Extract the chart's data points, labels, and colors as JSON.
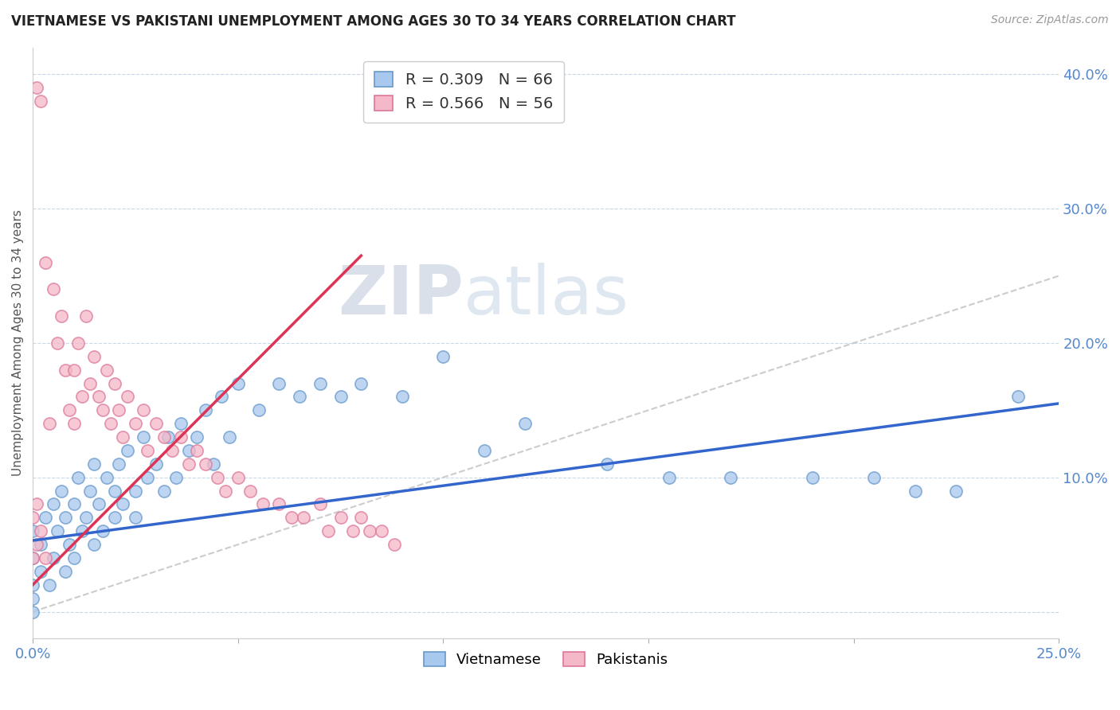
{
  "title": "VIETNAMESE VS PAKISTANI UNEMPLOYMENT AMONG AGES 30 TO 34 YEARS CORRELATION CHART",
  "source": "Source: ZipAtlas.com",
  "ylabel": "Unemployment Among Ages 30 to 34 years",
  "xlim": [
    0.0,
    0.25
  ],
  "ylim": [
    -0.02,
    0.42
  ],
  "xticks": [
    0.0,
    0.05,
    0.1,
    0.15,
    0.2,
    0.25
  ],
  "yticks": [
    0.0,
    0.1,
    0.2,
    0.3,
    0.4
  ],
  "xticklabels": [
    "0.0%",
    "",
    "",
    "",
    "",
    "25.0%"
  ],
  "yticklabels": [
    "",
    "10.0%",
    "20.0%",
    "30.0%",
    "40.0%"
  ],
  "background_color": "#ffffff",
  "R_vietnamese": 0.309,
  "N_vietnamese": 66,
  "R_pakistani": 0.566,
  "N_pakistani": 56,
  "vietnamese_color": "#a8c8ee",
  "pakistani_color": "#f4b8c8",
  "vietnamese_edge_color": "#6699cc",
  "pakistani_edge_color": "#dd7799",
  "vietnamese_line_color": "#3366cc",
  "pakistani_line_color": "#dd3355",
  "grid_color": "#c8d8e8",
  "watermark_zip_color": "#c8d8e8",
  "watermark_atlas_color": "#b0c4de",
  "viet_x": [
    0.0,
    0.0,
    0.0,
    0.0,
    0.0,
    0.002,
    0.002,
    0.003,
    0.004,
    0.005,
    0.005,
    0.006,
    0.007,
    0.008,
    0.008,
    0.009,
    0.01,
    0.01,
    0.011,
    0.012,
    0.013,
    0.014,
    0.015,
    0.015,
    0.016,
    0.017,
    0.018,
    0.02,
    0.02,
    0.021,
    0.022,
    0.023,
    0.025,
    0.025,
    0.027,
    0.028,
    0.03,
    0.032,
    0.033,
    0.035,
    0.036,
    0.038,
    0.04,
    0.042,
    0.044,
    0.046,
    0.048,
    0.05,
    0.055,
    0.06,
    0.065,
    0.07,
    0.075,
    0.08,
    0.09,
    0.1,
    0.11,
    0.12,
    0.14,
    0.155,
    0.17,
    0.19,
    0.205,
    0.215,
    0.225,
    0.24
  ],
  "viet_y": [
    0.06,
    0.04,
    0.02,
    0.01,
    0.0,
    0.05,
    0.03,
    0.07,
    0.02,
    0.08,
    0.04,
    0.06,
    0.09,
    0.03,
    0.07,
    0.05,
    0.08,
    0.04,
    0.1,
    0.06,
    0.07,
    0.09,
    0.05,
    0.11,
    0.08,
    0.06,
    0.1,
    0.09,
    0.07,
    0.11,
    0.08,
    0.12,
    0.09,
    0.07,
    0.13,
    0.1,
    0.11,
    0.09,
    0.13,
    0.1,
    0.14,
    0.12,
    0.13,
    0.15,
    0.11,
    0.16,
    0.13,
    0.17,
    0.15,
    0.17,
    0.16,
    0.17,
    0.16,
    0.17,
    0.16,
    0.19,
    0.12,
    0.14,
    0.11,
    0.1,
    0.1,
    0.1,
    0.1,
    0.09,
    0.09,
    0.16
  ],
  "pak_x": [
    0.001,
    0.002,
    0.003,
    0.004,
    0.005,
    0.006,
    0.007,
    0.008,
    0.009,
    0.01,
    0.01,
    0.011,
    0.012,
    0.013,
    0.014,
    0.015,
    0.016,
    0.017,
    0.018,
    0.019,
    0.02,
    0.021,
    0.022,
    0.023,
    0.025,
    0.027,
    0.028,
    0.03,
    0.032,
    0.034,
    0.036,
    0.038,
    0.04,
    0.042,
    0.045,
    0.047,
    0.05,
    0.053,
    0.056,
    0.06,
    0.063,
    0.066,
    0.07,
    0.072,
    0.075,
    0.078,
    0.08,
    0.082,
    0.085,
    0.088,
    0.0,
    0.001,
    0.002,
    0.003,
    0.0,
    0.001
  ],
  "pak_y": [
    0.39,
    0.38,
    0.26,
    0.14,
    0.24,
    0.2,
    0.22,
    0.18,
    0.15,
    0.18,
    0.14,
    0.2,
    0.16,
    0.22,
    0.17,
    0.19,
    0.16,
    0.15,
    0.18,
    0.14,
    0.17,
    0.15,
    0.13,
    0.16,
    0.14,
    0.15,
    0.12,
    0.14,
    0.13,
    0.12,
    0.13,
    0.11,
    0.12,
    0.11,
    0.1,
    0.09,
    0.1,
    0.09,
    0.08,
    0.08,
    0.07,
    0.07,
    0.08,
    0.06,
    0.07,
    0.06,
    0.07,
    0.06,
    0.06,
    0.05,
    0.04,
    0.05,
    0.06,
    0.04,
    0.07,
    0.08
  ],
  "viet_trend": [
    0.0,
    0.25,
    0.053,
    0.155
  ],
  "pak_trend": [
    0.0,
    0.08,
    0.02,
    0.265
  ],
  "ref_line": [
    0.0,
    0.25,
    0.0,
    0.25
  ]
}
